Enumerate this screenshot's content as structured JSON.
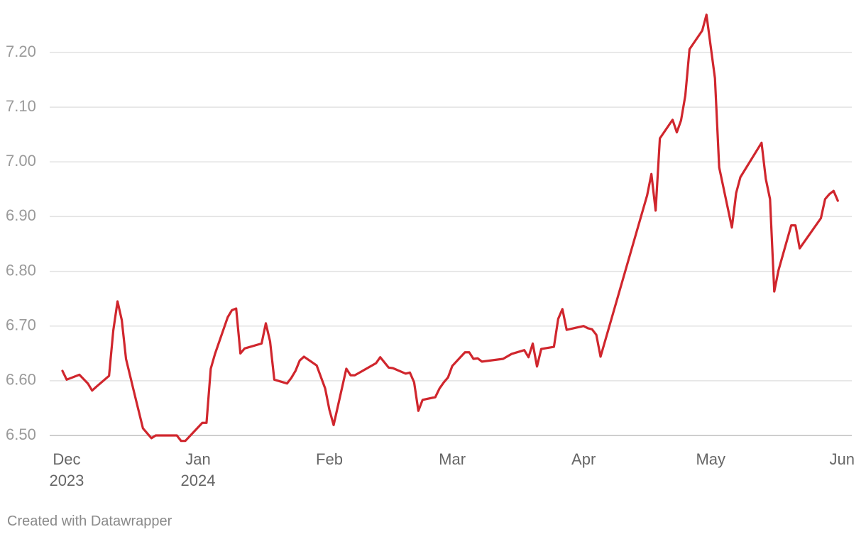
{
  "chart_data": {
    "type": "line",
    "color": "#d0262d",
    "grid": true,
    "footer": "Created with Datawrapper",
    "xlim": [
      -14.4,
      185.3
    ],
    "xticks": [
      {
        "value": 0,
        "label": "Dec 2023"
      },
      {
        "value": 31,
        "label": "Jan 2024"
      },
      {
        "value": 62,
        "label": "Feb"
      },
      {
        "value": 91,
        "label": "Mar"
      },
      {
        "value": 122,
        "label": "Apr"
      },
      {
        "value": 152,
        "label": "May"
      },
      {
        "value": 183,
        "label": "Jun"
      }
    ],
    "ylim": [
      6.5,
      7.2
    ],
    "yticks": [
      {
        "value": 6.5,
        "label": "6.50"
      },
      {
        "value": 6.6,
        "label": "6.60"
      },
      {
        "value": 6.7,
        "label": "6.70"
      },
      {
        "value": 6.8,
        "label": "6.80"
      },
      {
        "value": 6.9,
        "label": "6.90"
      },
      {
        "value": 7.0,
        "label": "7.00"
      },
      {
        "value": 7.1,
        "label": "7.10"
      },
      {
        "value": 7.2,
        "label": "7.20"
      }
    ],
    "x": [
      -1,
      0,
      3,
      5,
      6,
      7,
      10,
      11,
      12,
      13,
      14,
      16,
      18,
      20,
      21,
      23,
      26,
      27,
      28,
      32,
      33,
      34,
      35,
      38,
      39,
      40,
      41,
      42,
      46,
      47,
      48,
      49,
      52,
      53,
      54,
      55,
      56,
      59,
      61,
      62,
      63,
      66,
      67,
      68,
      73,
      74,
      76,
      77,
      80,
      81,
      82,
      83,
      84,
      87,
      88,
      89,
      90,
      91,
      94,
      95,
      96,
      97,
      98,
      103,
      105,
      108,
      109,
      110,
      111,
      112,
      115,
      116,
      117,
      118,
      122,
      123,
      124,
      125,
      126,
      137,
      138,
      139,
      140,
      143,
      144,
      145,
      146,
      147,
      150,
      151,
      153,
      154,
      157,
      158,
      159,
      164,
      165,
      166,
      167,
      168,
      171,
      172,
      173,
      178,
      179,
      180,
      181,
      182
    ],
    "values": [
      6.618,
      6.602,
      6.611,
      6.595,
      6.582,
      6.589,
      6.609,
      6.692,
      6.745,
      6.711,
      6.64,
      6.576,
      6.513,
      6.495,
      6.5,
      6.5,
      6.5,
      6.49,
      6.49,
      6.523,
      6.523,
      6.622,
      6.649,
      6.716,
      6.729,
      6.732,
      6.65,
      6.659,
      6.668,
      6.705,
      6.672,
      6.602,
      6.595,
      6.605,
      6.618,
      6.637,
      6.644,
      6.628,
      6.586,
      6.547,
      6.519,
      6.622,
      6.61,
      6.61,
      6.632,
      6.643,
      6.624,
      6.623,
      6.613,
      6.615,
      6.597,
      6.545,
      6.565,
      6.57,
      6.586,
      6.597,
      6.606,
      6.627,
      6.652,
      6.652,
      6.64,
      6.641,
      6.635,
      6.64,
      6.649,
      6.656,
      6.643,
      6.668,
      6.626,
      6.658,
      6.662,
      6.713,
      6.731,
      6.693,
      6.7,
      6.696,
      6.694,
      6.684,
      6.644,
      6.939,
      6.978,
      6.911,
      7.043,
      7.077,
      7.054,
      7.076,
      7.121,
      7.206,
      7.24,
      7.269,
      7.153,
      6.99,
      6.88,
      6.943,
      6.972,
      7.035,
      6.969,
      6.932,
      6.763,
      6.802,
      6.884,
      6.884,
      6.842,
      6.897,
      6.932,
      6.941,
      6.947,
      6.929
    ]
  }
}
